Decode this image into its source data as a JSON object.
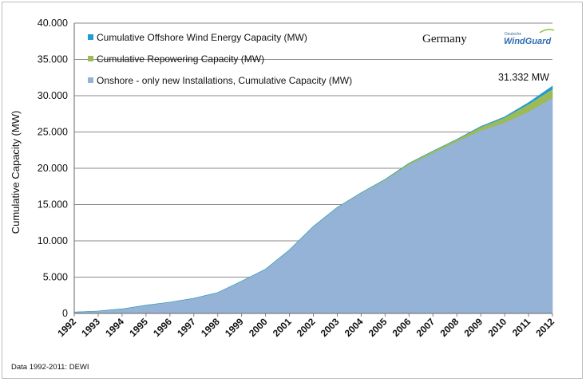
{
  "chart_data": {
    "type": "area",
    "stacked": true,
    "title": "",
    "country_label": "Germany",
    "ylabel": "Cumulative Capacity (MW)",
    "xlabel": "",
    "ylim": [
      0,
      40000
    ],
    "yticks": [
      0,
      5000,
      10000,
      15000,
      20000,
      25000,
      30000,
      35000,
      40000
    ],
    "ytick_labels": [
      "0",
      "5.000",
      "10.000",
      "15.000",
      "20.000",
      "25.000",
      "30.000",
      "35.000",
      "40.000"
    ],
    "x": [
      "1992",
      "1993",
      "1994",
      "1995",
      "1996",
      "1997",
      "1998",
      "1999",
      "2000",
      "2001",
      "2002",
      "2003",
      "2004",
      "2005",
      "2006",
      "2007",
      "2008",
      "2009",
      "2010",
      "2011",
      "2012"
    ],
    "grid": true,
    "legend_position": "top-left",
    "series": [
      {
        "name": "Onshore - only new Installations, Cumulative Capacity (MW)",
        "color": "#95b3d7",
        "values": [
          180,
          330,
          620,
          1130,
          1550,
          2080,
          2870,
          4450,
          6100,
          8750,
          11990,
          14600,
          16600,
          18400,
          20500,
          22100,
          23700,
          25200,
          26300,
          27800,
          29700
        ]
      },
      {
        "name": "Cumulative Repowering Capacity (MW)",
        "color": "#9bbb59",
        "values": [
          0,
          0,
          0,
          0,
          0,
          0,
          0,
          0,
          0,
          0,
          0,
          20,
          30,
          80,
          200,
          280,
          300,
          500,
          700,
          1050,
          1230
        ]
      },
      {
        "name": "Cumulative Offshore Wind Energy Capacity (MW)",
        "color": "#1f9bd7",
        "values": [
          0,
          0,
          0,
          0,
          0,
          0,
          0,
          0,
          0,
          0,
          0,
          0,
          0,
          0,
          0,
          0,
          0,
          60,
          90,
          200,
          400
        ]
      }
    ],
    "annotation": "31.332 MW",
    "source": "Data 1992-2011: DEWI"
  },
  "logo": {
    "small_text": "Deutsche",
    "brand_text": "WindGuard"
  }
}
